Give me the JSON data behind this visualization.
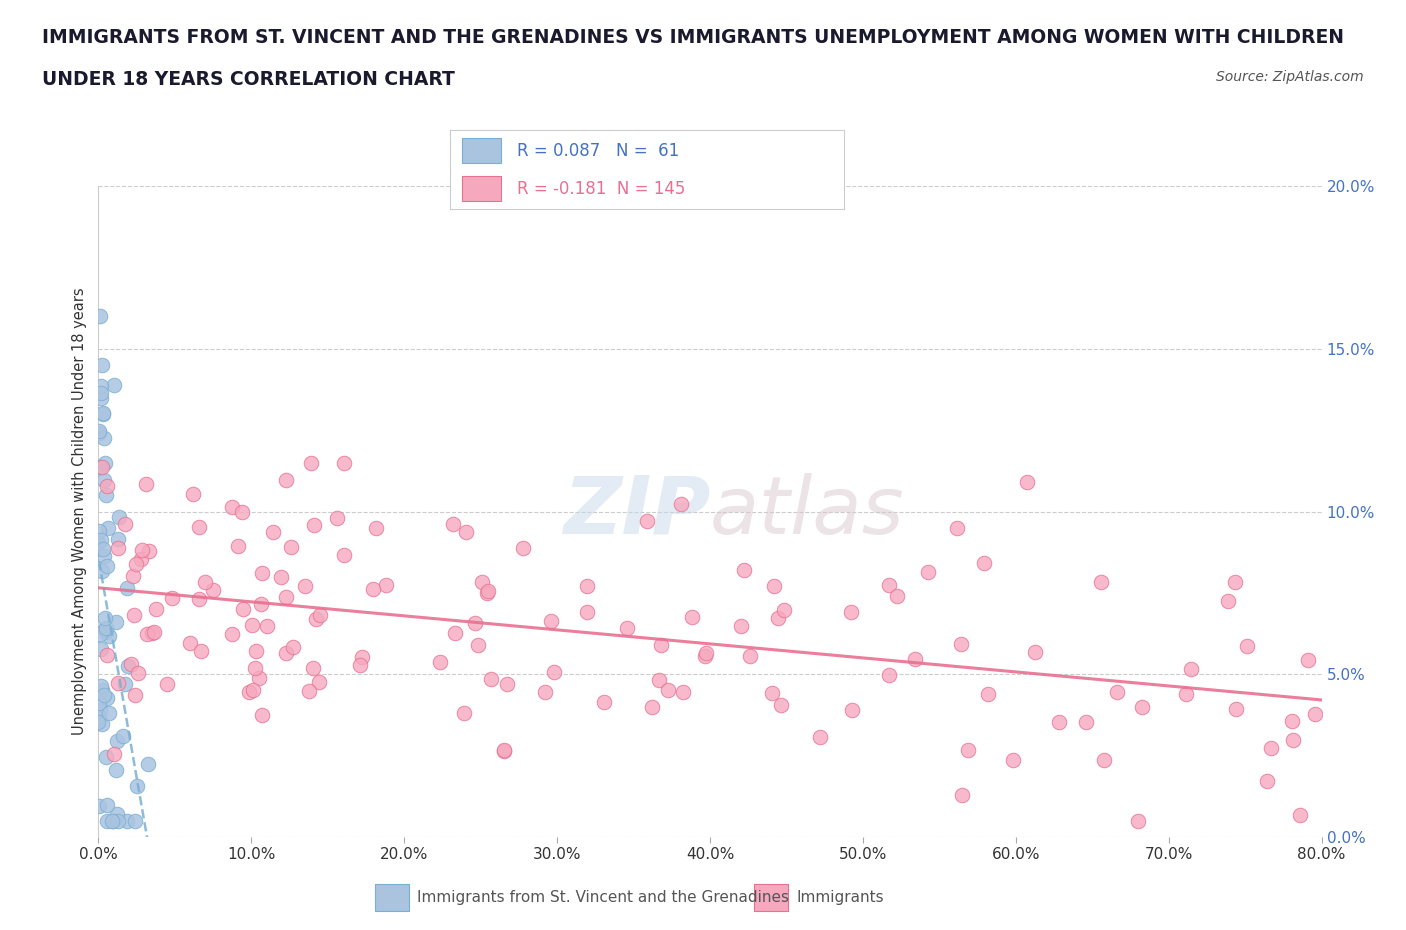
{
  "title_line1": "IMMIGRANTS FROM ST. VINCENT AND THE GRENADINES VS IMMIGRANTS UNEMPLOYMENT AMONG WOMEN WITH CHILDREN",
  "title_line2": "UNDER 18 YEARS CORRELATION CHART",
  "source": "Source: ZipAtlas.com",
  "ylabel": "Unemployment Among Women with Children Under 18 years",
  "watermark_zip": "ZIP",
  "watermark_atlas": "atlas",
  "series1_name": "Immigrants from St. Vincent and the Grenadines",
  "series2_name": "Immigrants",
  "series1_color": "#aac4e0",
  "series2_color": "#f5a8be",
  "series1_edge": "#7aafd4",
  "series2_edge": "#e87090",
  "trend1_color": "#7aafd4",
  "trend2_color": "#e87090",
  "R1": 0.087,
  "N1": 61,
  "R2": -0.181,
  "N2": 145,
  "xlim": [
    0.0,
    0.8
  ],
  "ylim": [
    0.0,
    0.2
  ],
  "xticks": [
    0.0,
    0.1,
    0.2,
    0.3,
    0.4,
    0.5,
    0.6,
    0.7,
    0.8
  ],
  "yticks": [
    0.0,
    0.05,
    0.1,
    0.15,
    0.2
  ],
  "background_color": "#ffffff",
  "title_color": "#1a1a2e",
  "source_color": "#555555",
  "grid_color": "#cccccc",
  "right_tick_color": "#4472c4",
  "xlabel_color": "#555555"
}
